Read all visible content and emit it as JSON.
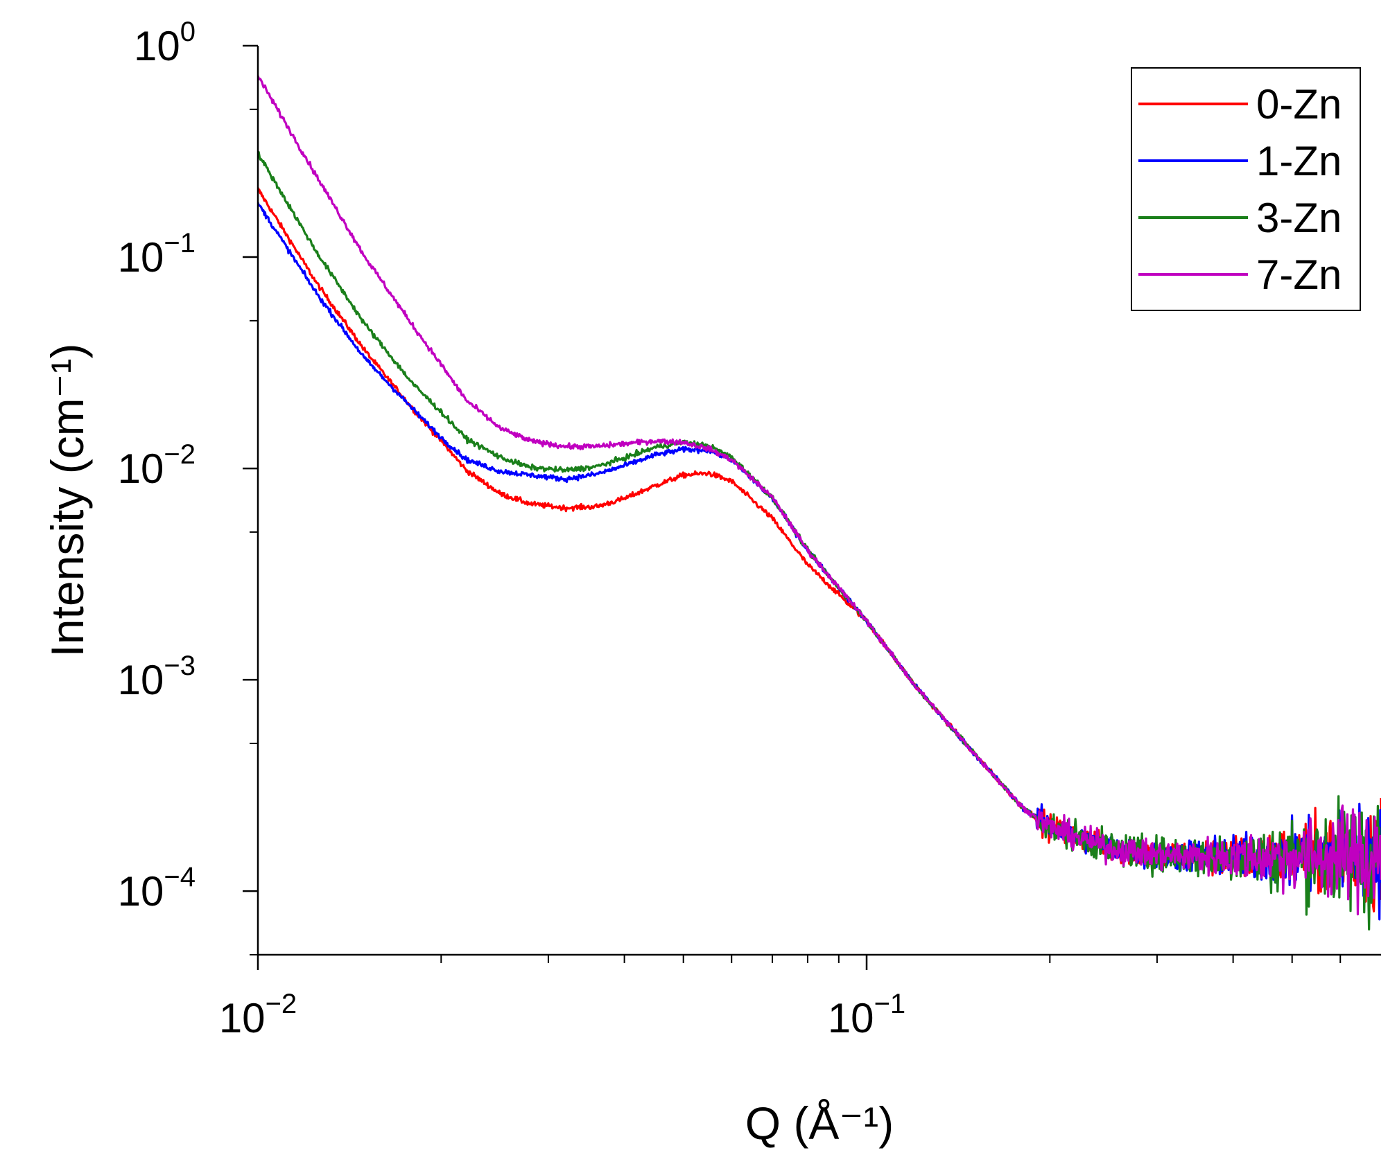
{
  "chart_data": {
    "type": "line",
    "x_scale": "log",
    "y_scale": "log",
    "xlim": [
      0.01,
      0.7
    ],
    "ylim": [
      5e-05,
      1
    ],
    "xlabel": "Q (Å⁻¹)",
    "ylabel": "Intensity (cm⁻¹)",
    "x_ticks": [
      {
        "value": 0.01,
        "base": "10",
        "exp": "−2"
      },
      {
        "value": 0.1,
        "base": "10",
        "exp": "−1"
      }
    ],
    "y_ticks": [
      {
        "value": 1,
        "base": "10",
        "exp": "0"
      },
      {
        "value": 0.1,
        "base": "10",
        "exp": "−1"
      },
      {
        "value": 0.01,
        "base": "10",
        "exp": "−2"
      },
      {
        "value": 0.001,
        "base": "10",
        "exp": "−3"
      },
      {
        "value": 0.0001,
        "base": "10",
        "exp": "−4"
      }
    ],
    "legend_position": "top-right",
    "noise_start_q": 0.19,
    "series": [
      {
        "name": "0-Zn",
        "color": "#ff0000",
        "noise": 0.05,
        "x": [
          0.01,
          0.0125,
          0.015,
          0.018,
          0.02,
          0.022,
          0.025,
          0.028,
          0.032,
          0.036,
          0.04,
          0.045,
          0.05,
          0.055,
          0.06,
          0.07,
          0.08,
          0.1,
          0.12,
          0.15,
          0.18,
          0.2,
          0.25,
          0.3,
          0.4,
          0.5,
          0.6,
          0.7
        ],
        "y": [
          0.21,
          0.075,
          0.036,
          0.019,
          0.0135,
          0.0098,
          0.0076,
          0.0068,
          0.0065,
          0.0066,
          0.0072,
          0.0083,
          0.0093,
          0.0095,
          0.0087,
          0.0058,
          0.0035,
          0.0019,
          0.00094,
          0.00045,
          0.00025,
          0.0002,
          0.00016,
          0.000148,
          0.000145,
          0.000145,
          0.000147,
          0.000148
        ]
      },
      {
        "name": "1-Zn",
        "color": "#0000ff",
        "noise": 0.05,
        "x": [
          0.01,
          0.0125,
          0.015,
          0.018,
          0.02,
          0.022,
          0.025,
          0.028,
          0.032,
          0.036,
          0.04,
          0.045,
          0.05,
          0.055,
          0.06,
          0.07,
          0.08,
          0.1,
          0.12,
          0.15,
          0.18,
          0.2,
          0.25,
          0.3,
          0.4,
          0.5,
          0.6,
          0.7
        ],
        "y": [
          0.18,
          0.067,
          0.033,
          0.019,
          0.014,
          0.011,
          0.0097,
          0.0093,
          0.0089,
          0.0094,
          0.0103,
          0.0116,
          0.0123,
          0.0122,
          0.011,
          0.0072,
          0.0041,
          0.0019,
          0.00094,
          0.00045,
          0.00025,
          0.0002,
          0.00016,
          0.000148,
          0.000145,
          0.000145,
          0.000147,
          0.000148
        ]
      },
      {
        "name": "3-Zn",
        "color": "#1a7f1a",
        "noise": 0.06,
        "x": [
          0.01,
          0.0125,
          0.015,
          0.018,
          0.02,
          0.022,
          0.025,
          0.028,
          0.032,
          0.036,
          0.04,
          0.045,
          0.05,
          0.055,
          0.06,
          0.07,
          0.08,
          0.1,
          0.12,
          0.15,
          0.18,
          0.2,
          0.25,
          0.3,
          0.4,
          0.5,
          0.6,
          0.7
        ],
        "y": [
          0.31,
          0.105,
          0.048,
          0.025,
          0.0185,
          0.0138,
          0.0113,
          0.0101,
          0.0098,
          0.0102,
          0.0112,
          0.0126,
          0.0133,
          0.0128,
          0.0113,
          0.0073,
          0.0041,
          0.0019,
          0.00094,
          0.00045,
          0.00025,
          0.0002,
          0.00016,
          0.000148,
          0.000145,
          0.000145,
          0.000147,
          0.000148
        ]
      },
      {
        "name": "7-Zn",
        "color": "#c000c0",
        "noise": 0.05,
        "x": [
          0.01,
          0.0125,
          0.015,
          0.018,
          0.02,
          0.022,
          0.025,
          0.028,
          0.032,
          0.036,
          0.04,
          0.045,
          0.05,
          0.055,
          0.06,
          0.07,
          0.08,
          0.1,
          0.12,
          0.15,
          0.18,
          0.2,
          0.25,
          0.3,
          0.4,
          0.5,
          0.6,
          0.7
        ],
        "y": [
          0.72,
          0.24,
          0.1,
          0.047,
          0.031,
          0.021,
          0.0155,
          0.0135,
          0.0127,
          0.0127,
          0.0131,
          0.0135,
          0.0133,
          0.0124,
          0.011,
          0.0073,
          0.0041,
          0.0019,
          0.00094,
          0.00045,
          0.00025,
          0.0002,
          0.00016,
          0.000148,
          0.000145,
          0.000145,
          0.000147,
          0.000148
        ]
      }
    ]
  }
}
